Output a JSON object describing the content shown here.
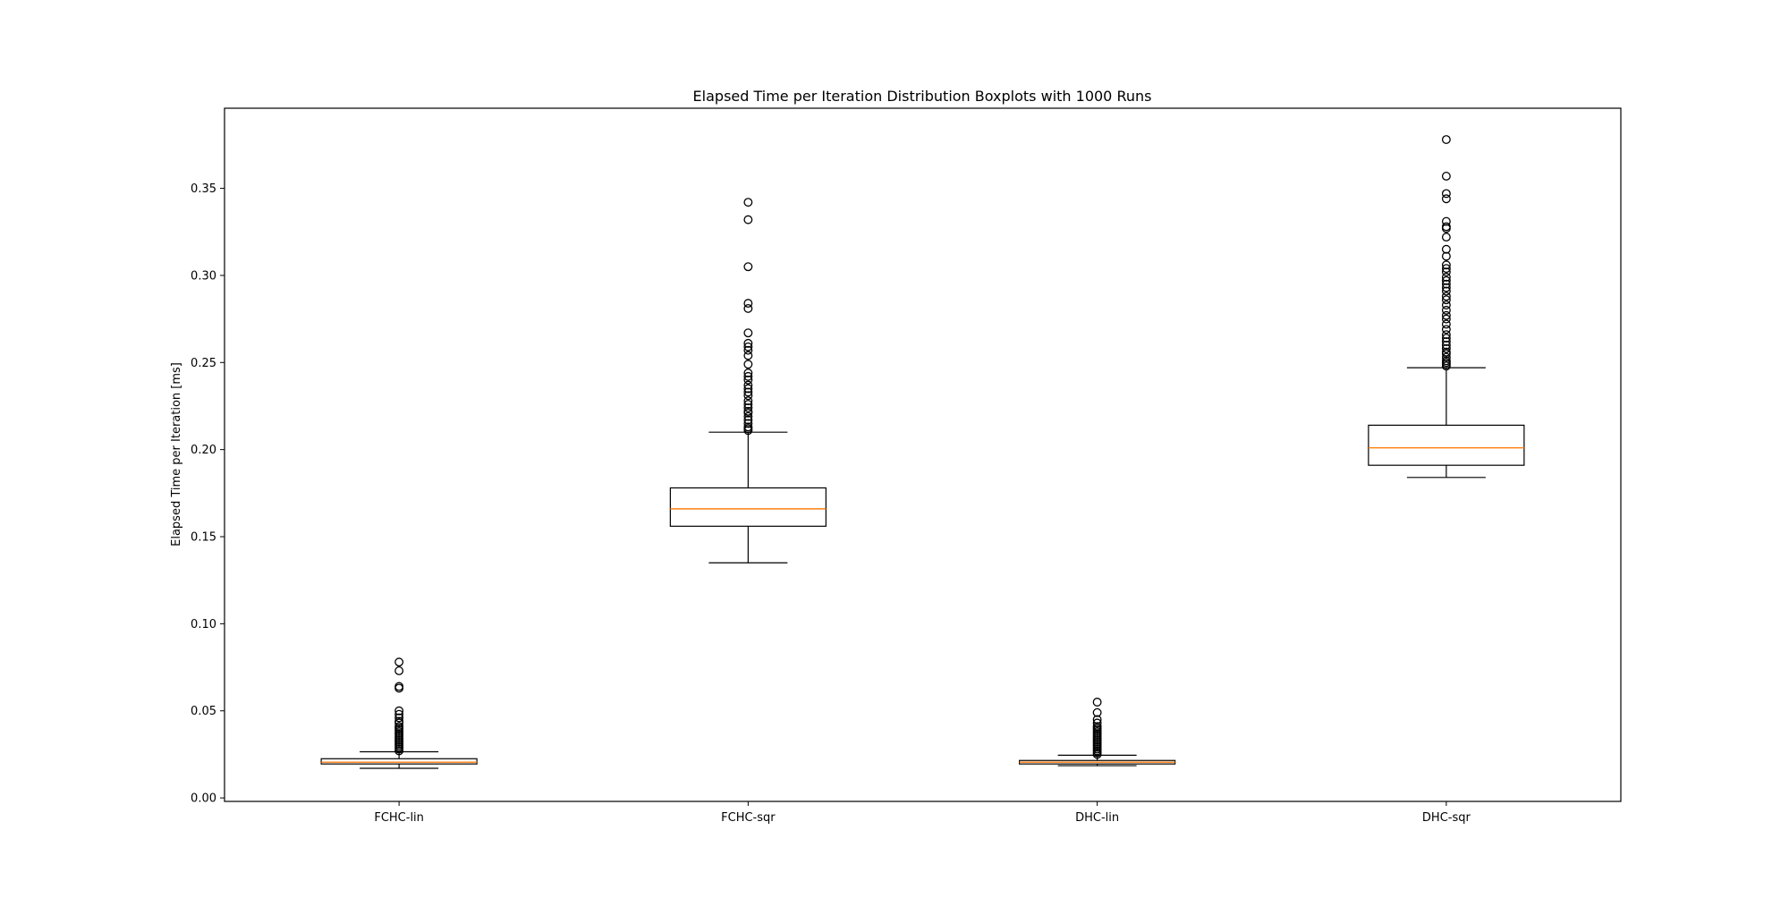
{
  "chart_data": {
    "type": "boxplot",
    "title": "Elapsed Time per Iteration Distribution Boxplots with 1000 Runs",
    "xlabel": "",
    "ylabel": "Elapsed Time per Iteration [ms]",
    "ylim": [
      -0.002,
      0.396
    ],
    "yticks": [
      0.0,
      0.05,
      0.1,
      0.15,
      0.2,
      0.25,
      0.3,
      0.35
    ],
    "ytick_labels": [
      "0.00",
      "0.05",
      "0.10",
      "0.15",
      "0.20",
      "0.25",
      "0.30",
      "0.35"
    ],
    "grid": false,
    "colors": {
      "box": "#000000",
      "median": "#ff7f0e",
      "flier": "#000000"
    },
    "categories": [
      "FCHC-lin",
      "FCHC-sqr",
      "DHC-lin",
      "DHC-sqr"
    ],
    "boxes": [
      {
        "label": "FCHC-lin",
        "whisker_low": 0.017,
        "q1": 0.0195,
        "median": 0.0205,
        "q3": 0.0225,
        "whisker_high": 0.0265,
        "fliers": [
          0.078,
          0.073,
          0.064,
          0.063,
          0.05,
          0.048,
          0.046,
          0.044,
          0.043,
          0.041,
          0.04,
          0.039,
          0.038,
          0.037,
          0.036,
          0.035,
          0.034,
          0.033,
          0.032,
          0.031,
          0.03,
          0.029,
          0.028,
          0.027
        ]
      },
      {
        "label": "FCHC-sqr",
        "whisker_low": 0.135,
        "q1": 0.156,
        "median": 0.166,
        "q3": 0.178,
        "whisker_high": 0.21,
        "fliers": [
          0.342,
          0.332,
          0.305,
          0.284,
          0.281,
          0.267,
          0.261,
          0.259,
          0.257,
          0.254,
          0.249,
          0.244,
          0.242,
          0.24,
          0.237,
          0.235,
          0.233,
          0.231,
          0.228,
          0.226,
          0.224,
          0.222,
          0.221,
          0.219,
          0.217,
          0.215,
          0.213,
          0.212,
          0.211
        ]
      },
      {
        "label": "DHC-lin",
        "whisker_low": 0.0185,
        "q1": 0.0195,
        "median": 0.0205,
        "q3": 0.0215,
        "whisker_high": 0.0245,
        "fliers": [
          0.055,
          0.049,
          0.045,
          0.043,
          0.041,
          0.04,
          0.039,
          0.038,
          0.037,
          0.036,
          0.035,
          0.034,
          0.033,
          0.032,
          0.031,
          0.03,
          0.029,
          0.028,
          0.027,
          0.026,
          0.025
        ]
      },
      {
        "label": "DHC-sqr",
        "whisker_low": 0.184,
        "q1": 0.191,
        "median": 0.201,
        "q3": 0.214,
        "whisker_high": 0.247,
        "fliers": [
          0.378,
          0.357,
          0.347,
          0.344,
          0.331,
          0.328,
          0.327,
          0.322,
          0.315,
          0.311,
          0.306,
          0.304,
          0.302,
          0.299,
          0.297,
          0.295,
          0.293,
          0.291,
          0.288,
          0.286,
          0.283,
          0.28,
          0.277,
          0.275,
          0.272,
          0.269,
          0.266,
          0.264,
          0.262,
          0.26,
          0.258,
          0.256,
          0.255,
          0.253,
          0.251,
          0.25,
          0.249,
          0.248
        ]
      }
    ]
  }
}
